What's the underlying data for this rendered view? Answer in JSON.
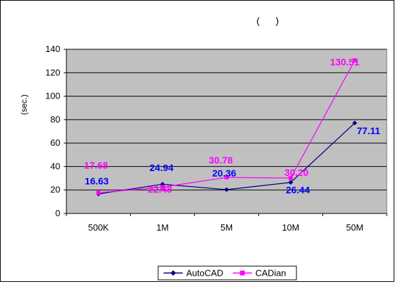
{
  "chart_data": {
    "type": "line",
    "title": "(      )",
    "xlabel": "",
    "ylabel": "(sec.)",
    "categories": [
      "500K",
      "1M",
      "5M",
      "10M",
      "50M"
    ],
    "ylim": [
      0,
      140
    ],
    "yticks": [
      0,
      20,
      40,
      60,
      80,
      100,
      120,
      140
    ],
    "grid": true,
    "legend_position": "bottom",
    "plot_background": "#c0c0c0",
    "series": [
      {
        "name": "AutoCAD",
        "values": [
          16.63,
          24.94,
          20.36,
          26.44,
          77.11
        ],
        "labels": [
          "16.63",
          "24.94",
          "20.36",
          "26.44",
          "77.11"
        ],
        "color": "#000080",
        "label_color": "#0000ff",
        "marker": "diamond"
      },
      {
        "name": "CADian",
        "values": [
          17.68,
          22.48,
          30.78,
          30.2,
          130.51
        ],
        "labels": [
          "17.68",
          "22.48",
          "30.78",
          "30.20",
          "130.51"
        ],
        "color": "#ff00ff",
        "label_color": "#ff00ff",
        "marker": "square"
      }
    ]
  }
}
